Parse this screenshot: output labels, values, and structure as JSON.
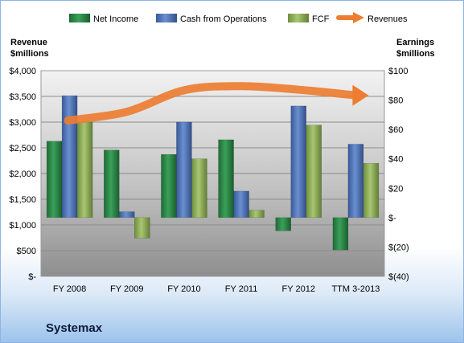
{
  "chart_data": {
    "type": "bar",
    "company": "Systemax",
    "categories": [
      "FY 2008",
      "FY 2009",
      "FY 2010",
      "FY 2011",
      "FY 2012",
      "TTM 3-2013"
    ],
    "left_axis": {
      "label_line1": "Revenue",
      "label_line2": "$millions",
      "ylim": [
        0,
        4000
      ],
      "ticks": [
        {
          "value": 0,
          "label": "$-"
        },
        {
          "value": 500,
          "label": "$500"
        },
        {
          "value": 1000,
          "label": "$1,000"
        },
        {
          "value": 1500,
          "label": "$1,500"
        },
        {
          "value": 2000,
          "label": "$2,000"
        },
        {
          "value": 2500,
          "label": "$2,500"
        },
        {
          "value": 3000,
          "label": "$3,000"
        },
        {
          "value": 3500,
          "label": "$3,500"
        },
        {
          "value": 4000,
          "label": "$4,000"
        }
      ]
    },
    "right_axis": {
      "label_line1": "Earnings",
      "label_line2": "$millions",
      "ylim": [
        -40,
        100
      ],
      "ticks": [
        {
          "value": -40,
          "label": "$(40)"
        },
        {
          "value": -20,
          "label": "$(20)"
        },
        {
          "value": 0,
          "label": "$-"
        },
        {
          "value": 20,
          "label": "$20"
        },
        {
          "value": 40,
          "label": "$40"
        },
        {
          "value": 60,
          "label": "$60"
        },
        {
          "value": 80,
          "label": "$80"
        },
        {
          "value": 100,
          "label": "$100"
        }
      ]
    },
    "series": [
      {
        "name": "Net Income",
        "axis": "right",
        "kind": "bar",
        "color": "#2e8b4a",
        "values": [
          52,
          46,
          43,
          53,
          -9,
          -22
        ]
      },
      {
        "name": "Cash from Operations",
        "axis": "right",
        "kind": "bar",
        "color": "#4f73b8",
        "values": [
          83,
          4,
          65,
          18,
          76,
          50
        ]
      },
      {
        "name": "FCF",
        "axis": "right",
        "kind": "bar",
        "color": "#8fb35a",
        "values": [
          65,
          -14,
          40,
          5,
          63,
          37
        ]
      },
      {
        "name": "Revenues",
        "axis": "left",
        "kind": "line",
        "color": "#ed7d31",
        "values": [
          3030,
          3200,
          3620,
          3700,
          3630,
          3520
        ]
      }
    ],
    "legend_placement": "top",
    "grid": true
  }
}
